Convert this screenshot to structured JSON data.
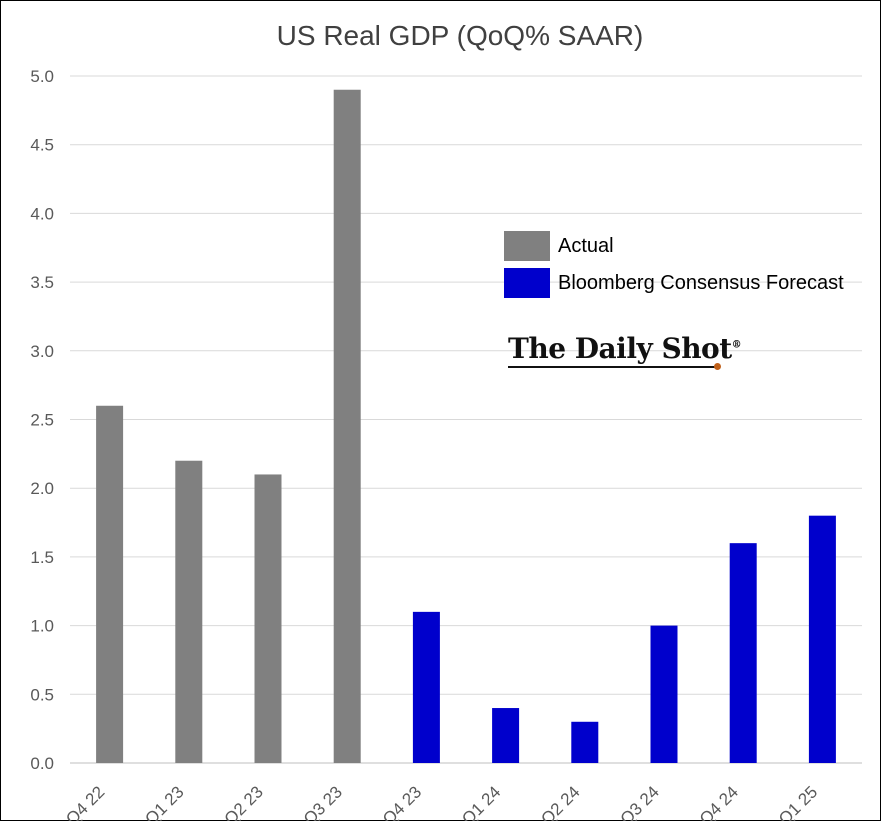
{
  "chart_data": {
    "type": "bar",
    "title": "US Real GDP (QoQ% SAAR)",
    "categories": [
      "Q4 22",
      "Q1 23",
      "Q2 23",
      "Q3 23",
      "Q4 23",
      "Q1 24",
      "Q2 24",
      "Q3 24",
      "Q4 24",
      "Q1 25"
    ],
    "series": [
      {
        "name": "Actual",
        "color": "#808080",
        "values": [
          2.6,
          2.2,
          2.1,
          4.9,
          null,
          null,
          null,
          null,
          null,
          null
        ]
      },
      {
        "name": "Bloomberg Consensus Forecast",
        "color": "#0000cc",
        "values": [
          null,
          null,
          null,
          null,
          1.1,
          0.4,
          0.3,
          1.0,
          1.6,
          1.8
        ]
      }
    ],
    "yticks": [
      "0.0",
      "0.5",
      "1.0",
      "1.5",
      "2.0",
      "2.5",
      "3.0",
      "3.5",
      "4.0",
      "4.5",
      "5.0"
    ],
    "ylim": [
      0,
      5.0
    ],
    "grid": true,
    "legend_position": "right"
  },
  "branding": {
    "logo_text": "The Daily Shot",
    "logo_mark": "®"
  }
}
